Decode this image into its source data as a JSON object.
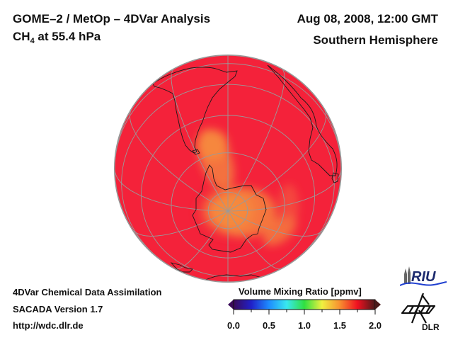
{
  "header": {
    "title_line1": "GOME–2 / MetOp – 4DVar Analysis",
    "species": "CH",
    "species_sub": "4",
    "level": " at 55.4 hPa",
    "datetime": "Aug 08, 2008, 12:00 GMT",
    "hemisphere": "Southern Hemisphere"
  },
  "footer": {
    "line1": "4DVar Chemical Data Assimilation",
    "line2": "SACADA Version 1.7",
    "line3": "http://wdc.dlr.de"
  },
  "map": {
    "projection": "orthographic, south polar view",
    "background_value_ppmv": 1.65,
    "polar_vortex_value_ppmv": 1.45,
    "background_color": "#f4223a",
    "vortex_color": "#f57f3e",
    "graticule_color": "#9a9a9a",
    "coastline_color": "#1a1a1a"
  },
  "colorbar": {
    "title": "Volume Mixing Ratio [ppmv]",
    "min": 0.0,
    "max": 2.0,
    "extend": "both",
    "ticks": [
      "0.0",
      "0.5",
      "1.0",
      "1.5",
      "2.0"
    ],
    "colors": [
      "#3a0a5a",
      "#2020c8",
      "#1e8cff",
      "#38e8f0",
      "#30e040",
      "#f0f040",
      "#f89030",
      "#f01020",
      "#4a1a1a"
    ]
  },
  "logos": {
    "riu": "RIU",
    "dlr": "DLR"
  }
}
